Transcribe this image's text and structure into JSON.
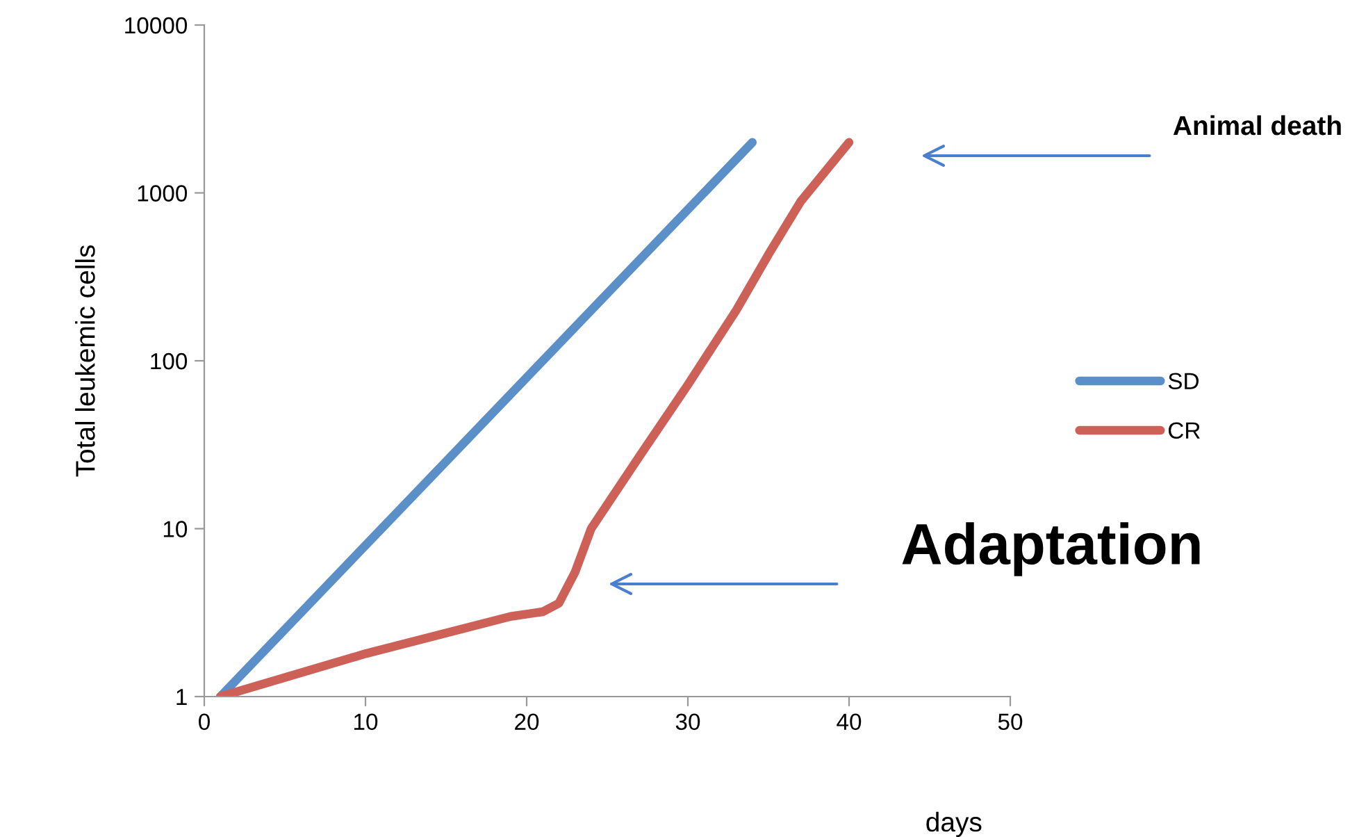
{
  "chart_data": {
    "type": "line",
    "xlabel": "days",
    "ylabel": "Total leukemic cells",
    "log": "y",
    "xlim": [
      0,
      50
    ],
    "xticks": [
      0,
      10,
      20,
      30,
      40,
      50
    ],
    "ylim": [
      1,
      10000
    ],
    "yticks": [
      1,
      10,
      100,
      1000,
      10000
    ],
    "grid": false,
    "legend": "right",
    "marker": "none",
    "line_style": "solid",
    "series": [
      {
        "name": "SD",
        "color": "#5b8fc7",
        "x": [
          1,
          34
        ],
        "values": [
          1,
          2000
        ]
      },
      {
        "name": "CR",
        "color": "#cd6158",
        "x": [
          1,
          10,
          19,
          21,
          22,
          23,
          24,
          27,
          30,
          33,
          35,
          37,
          40
        ],
        "values": [
          1,
          1.8,
          3.0,
          3.2,
          3.6,
          5.5,
          10,
          27,
          72,
          200,
          430,
          890,
          2000
        ]
      }
    ],
    "annotations": [
      "Animal death",
      "Adaptation"
    ]
  }
}
